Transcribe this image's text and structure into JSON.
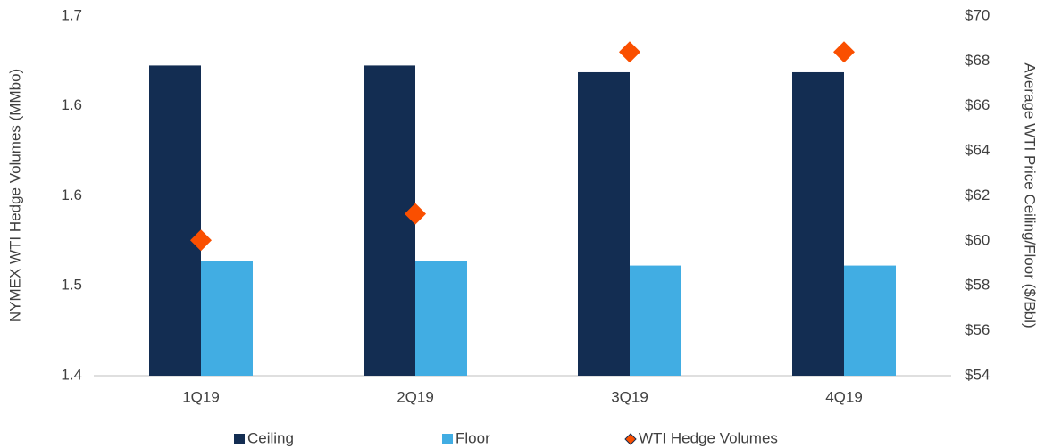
{
  "chart_data": {
    "type": "bar",
    "categories": [
      "1Q19",
      "2Q19",
      "3Q19",
      "4Q19"
    ],
    "series": [
      {
        "name": "Ceiling",
        "color": "#132d52",
        "axis": "y2",
        "values": [
          67.8,
          67.8,
          67.5,
          67.5
        ]
      },
      {
        "name": "Floor",
        "color": "#41ade3",
        "axis": "y2",
        "values": [
          59.1,
          59.1,
          58.9,
          58.9
        ]
      },
      {
        "name": "WTI Hedge Volumes",
        "color": "#fa4f00",
        "type": "scatter",
        "values": [
          1.513,
          1.535,
          1.67,
          1.67
        ]
      }
    ],
    "ylabel": "NYMEX WTI Hedge Volumes (MMbo)",
    "y2label": "Average WTI Price Ceiling/Floor ($/Bbl)",
    "ylim": [
      1.4,
      1.7
    ],
    "yticks": [
      1.4,
      {
        "value": 1.475,
        "label": "1.5"
      },
      {
        "value": 1.55,
        "label": "1.6"
      },
      {
        "value": 1.625,
        "label": "1.6"
      },
      1.7
    ],
    "y2lim": [
      54,
      70
    ],
    "y2ticks": [
      {
        "value": 54,
        "label": "$54"
      },
      {
        "value": 56,
        "label": "$56"
      },
      {
        "value": 58,
        "label": "$58"
      },
      {
        "value": 60,
        "label": "$60"
      },
      {
        "value": 62,
        "label": "$62"
      },
      {
        "value": 64,
        "label": "$64"
      },
      {
        "value": 66,
        "label": "$66"
      },
      {
        "value": 68,
        "label": "$68"
      },
      {
        "value": 70,
        "label": "$70"
      }
    ],
    "legend": "bottom"
  }
}
